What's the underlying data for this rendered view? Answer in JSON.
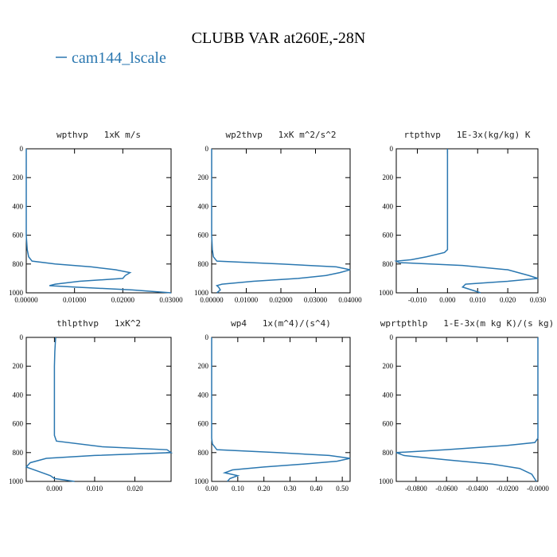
{
  "title": "CLUBB VAR at260E,-28N",
  "legend": [
    {
      "name": "cam144_lscale",
      "color": "#2a77b0"
    }
  ],
  "chart_data": [
    {
      "type": "line",
      "title": "wpthvp   1xK m/s",
      "xlim": [
        0,
        0.03
      ],
      "ylim": [
        1000,
        0
      ],
      "xticks": [
        {
          "value": 0,
          "label": "0.00000"
        },
        {
          "value": 0.01,
          "label": "0.01000"
        },
        {
          "value": 0.02,
          "label": "0.02000"
        },
        {
          "value": 0.03,
          "label": "0.03000"
        }
      ],
      "yticks": [
        0,
        200,
        400,
        600,
        800,
        1000
      ],
      "levels": [
        0,
        100,
        200,
        300,
        400,
        500,
        600,
        700,
        750,
        780,
        800,
        820,
        840,
        860,
        880,
        900,
        920,
        940,
        950,
        960,
        980,
        1000
      ],
      "series": [
        {
          "color": "#2a77b0",
          "values": [
            0,
            0,
            0,
            0,
            0,
            0,
            0,
            0.0002,
            0.0005,
            0.0012,
            0.006,
            0.0135,
            0.0185,
            0.0215,
            0.0205,
            0.02,
            0.011,
            0.006,
            0.0048,
            0.01,
            0.022,
            0.03
          ]
        }
      ]
    },
    {
      "type": "line",
      "title": "wp2thvp   1xK m^2/s^2",
      "xlim": [
        0,
        0.04
      ],
      "ylim": [
        1000,
        0
      ],
      "xticks": [
        {
          "value": 0,
          "label": "0.00000"
        },
        {
          "value": 0.01,
          "label": "0.01000"
        },
        {
          "value": 0.02,
          "label": "0.02000"
        },
        {
          "value": 0.03,
          "label": "0.03000"
        },
        {
          "value": 0.04,
          "label": "0.04000"
        }
      ],
      "yticks": [
        0,
        200,
        400,
        600,
        800,
        1000
      ],
      "levels": [
        0,
        100,
        200,
        300,
        400,
        500,
        600,
        700,
        750,
        780,
        800,
        820,
        840,
        860,
        880,
        900,
        920,
        940,
        950,
        960,
        980,
        1000
      ],
      "series": [
        {
          "color": "#2a77b0",
          "values": [
            0,
            0,
            0,
            0,
            0,
            0,
            0,
            0.0002,
            0.0005,
            0.0015,
            0.02,
            0.036,
            0.04,
            0.037,
            0.033,
            0.025,
            0.012,
            0.003,
            0.0015,
            0.002,
            0.0025,
            0.0015
          ]
        }
      ]
    },
    {
      "type": "line",
      "title": "rtpthvp   1E-3x(kg/kg) K",
      "xlim": [
        -0.017,
        0.03
      ],
      "ylim": [
        1000,
        0
      ],
      "xticks": [
        {
          "value": -0.01,
          "label": "-0.010"
        },
        {
          "value": 0,
          "label": "0.000"
        },
        {
          "value": 0.01,
          "label": "0.010"
        },
        {
          "value": 0.02,
          "label": "0.020"
        },
        {
          "value": 0.03,
          "label": "0.030"
        }
      ],
      "yticks": [
        0,
        200,
        400,
        600,
        800,
        1000
      ],
      "levels": [
        0,
        100,
        200,
        300,
        400,
        500,
        600,
        700,
        720,
        750,
        770,
        780,
        790,
        810,
        840,
        880,
        900,
        920,
        940,
        960,
        980,
        1000
      ],
      "series": [
        {
          "color": "#2a77b0",
          "values": [
            0,
            0,
            0,
            0,
            0,
            0,
            0,
            0,
            -0.001,
            -0.007,
            -0.012,
            -0.017,
            -0.016,
            0.005,
            0.02,
            0.027,
            0.03,
            0.02,
            0.006,
            0.005,
            0.008,
            0.011
          ]
        }
      ]
    },
    {
      "type": "line",
      "title": "thlpthvp   1xK^2",
      "xlim": [
        -0.007,
        0.029
      ],
      "ylim": [
        1000,
        0
      ],
      "xticks": [
        {
          "value": 0,
          "label": "0.000"
        },
        {
          "value": 0.01,
          "label": "0.010"
        },
        {
          "value": 0.02,
          "label": "0.020"
        }
      ],
      "yticks": [
        0,
        200,
        400,
        600,
        800,
        1000
      ],
      "levels": [
        0,
        100,
        200,
        300,
        400,
        500,
        600,
        680,
        720,
        760,
        780,
        800,
        820,
        840,
        870,
        900,
        930,
        960,
        980,
        1000
      ],
      "series": [
        {
          "color": "#2a77b0",
          "values": [
            0.0003,
            0.0001,
            0,
            0,
            0,
            0,
            0,
            0,
            0.0005,
            0.012,
            0.028,
            0.029,
            0.01,
            -0.002,
            -0.006,
            -0.007,
            -0.004,
            -0.001,
            0,
            0.005
          ]
        }
      ]
    },
    {
      "type": "line",
      "title": "wp4   1x(m^4)/(s^4)",
      "xlim": [
        0,
        0.53
      ],
      "ylim": [
        1000,
        0
      ],
      "xticks": [
        {
          "value": 0,
          "label": "0.00"
        },
        {
          "value": 0.1,
          "label": "0.10"
        },
        {
          "value": 0.2,
          "label": "0.20"
        },
        {
          "value": 0.3,
          "label": "0.30"
        },
        {
          "value": 0.4,
          "label": "0.40"
        },
        {
          "value": 0.5,
          "label": "0.50"
        }
      ],
      "yticks": [
        0,
        200,
        400,
        600,
        800,
        1000
      ],
      "levels": [
        0,
        100,
        200,
        300,
        400,
        500,
        600,
        700,
        740,
        780,
        800,
        820,
        840,
        860,
        880,
        900,
        920,
        940,
        960,
        980,
        1000
      ],
      "series": [
        {
          "color": "#2a77b0",
          "values": [
            0,
            0,
            0,
            0,
            0,
            0,
            0,
            0,
            0.003,
            0.02,
            0.25,
            0.45,
            0.53,
            0.48,
            0.35,
            0.2,
            0.08,
            0.05,
            0.1,
            0.07,
            0.06
          ]
        }
      ]
    },
    {
      "type": "line",
      "title": "wprtpthlp   1-E-3x(m kg K)/(s kg)",
      "xlim": [
        -0.093,
        0
      ],
      "ylim": [
        1000,
        0
      ],
      "xticks": [
        {
          "value": -0.08,
          "label": "-0.0800"
        },
        {
          "value": -0.06,
          "label": "-0.0600"
        },
        {
          "value": -0.04,
          "label": "-0.0400"
        },
        {
          "value": -0.02,
          "label": "-0.0200"
        },
        {
          "value": 0,
          "label": "-0.0000"
        }
      ],
      "yticks": [
        0,
        200,
        400,
        600,
        800,
        1000
      ],
      "levels": [
        0,
        100,
        200,
        300,
        400,
        500,
        600,
        700,
        730,
        750,
        780,
        800,
        820,
        850,
        880,
        910,
        950,
        1000
      ],
      "series": [
        {
          "color": "#2a77b0",
          "values": [
            0,
            0,
            0,
            0,
            0,
            0,
            0,
            0,
            -0.002,
            -0.02,
            -0.06,
            -0.093,
            -0.088,
            -0.06,
            -0.03,
            -0.012,
            -0.004,
            -0.001
          ]
        }
      ]
    }
  ]
}
